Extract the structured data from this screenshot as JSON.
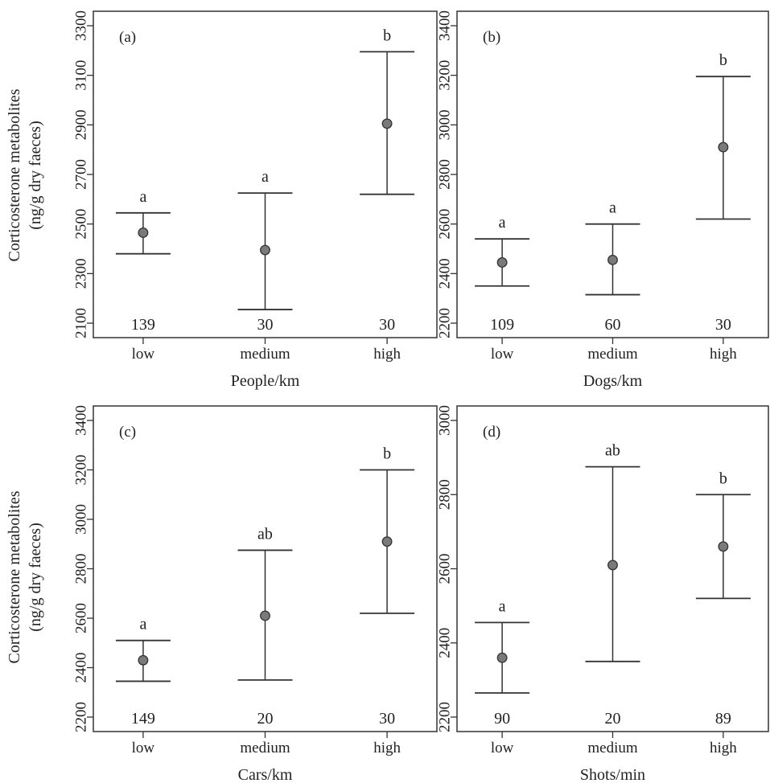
{
  "figure": {
    "ylabel_line1": "Corticosterone metabolites",
    "ylabel_line2": "(ng/g dry faeces)"
  },
  "chart_data": [
    {
      "type": "scatter",
      "panel_label": "(a)",
      "xlabel": "People/km",
      "categories": [
        "low",
        "medium",
        "high"
      ],
      "ylim": [
        2100,
        3300
      ],
      "yticks": [
        2100,
        2300,
        2500,
        2700,
        2900,
        3100,
        3300
      ],
      "series": [
        {
          "means": [
            2465,
            2395,
            2905
          ],
          "lower": [
            2380,
            2155,
            2620
          ],
          "upper": [
            2545,
            2625,
            3195
          ]
        }
      ],
      "sig_letters": [
        "a",
        "a",
        "b"
      ],
      "n_labels": [
        "139",
        "30",
        "30"
      ]
    },
    {
      "type": "scatter",
      "panel_label": "(b)",
      "xlabel": "Dogs/km",
      "categories": [
        "low",
        "medium",
        "high"
      ],
      "ylim": [
        2200,
        3400
      ],
      "yticks": [
        2200,
        2400,
        2600,
        2800,
        3000,
        3200,
        3400
      ],
      "series": [
        {
          "means": [
            2445,
            2455,
            2910
          ],
          "lower": [
            2350,
            2315,
            2620
          ],
          "upper": [
            2540,
            2600,
            3195
          ]
        }
      ],
      "sig_letters": [
        "a",
        "a",
        "b"
      ],
      "n_labels": [
        "109",
        "60",
        "30"
      ]
    },
    {
      "type": "scatter",
      "panel_label": "(c)",
      "xlabel": "Cars/km",
      "categories": [
        "low",
        "medium",
        "high"
      ],
      "ylim": [
        2200,
        3400
      ],
      "yticks": [
        2200,
        2400,
        2600,
        2800,
        3000,
        3200,
        3400
      ],
      "series": [
        {
          "means": [
            2430,
            2610,
            2910
          ],
          "lower": [
            2345,
            2350,
            2620
          ],
          "upper": [
            2510,
            2875,
            3200
          ]
        }
      ],
      "sig_letters": [
        "a",
        "ab",
        "b"
      ],
      "n_labels": [
        "149",
        "20",
        "30"
      ]
    },
    {
      "type": "scatter",
      "panel_label": "(d)",
      "xlabel": "Shots/min",
      "categories": [
        "low",
        "medium",
        "high"
      ],
      "ylim": [
        2200,
        3000
      ],
      "yticks": [
        2200,
        2400,
        2600,
        2800,
        3000
      ],
      "series": [
        {
          "means": [
            2360,
            2610,
            2660
          ],
          "lower": [
            2265,
            2350,
            2520
          ],
          "upper": [
            2455,
            2875,
            2800
          ]
        }
      ],
      "sig_letters": [
        "a",
        "ab",
        "b"
      ],
      "n_labels": [
        "90",
        "20",
        "89"
      ]
    }
  ]
}
